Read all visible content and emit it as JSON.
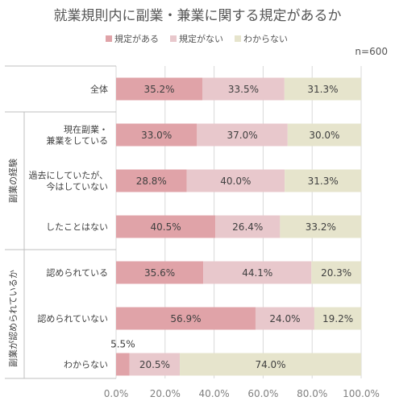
{
  "chart_data": {
    "type": "bar",
    "orientation": "horizontal",
    "stacked": "100%",
    "title": "就業規則内に副業・兼業に関する規定があるか",
    "note": "n=600",
    "legend_position": "top",
    "series": [
      {
        "name": "規定がある",
        "color": "#e0a3a8",
        "values": [
          35.2,
          33.0,
          28.8,
          40.5,
          35.6,
          56.9,
          5.5
        ]
      },
      {
        "name": "規定がない",
        "color": "#e8c8cc",
        "values": [
          33.5,
          37.0,
          40.0,
          26.4,
          44.1,
          24.0,
          20.5
        ]
      },
      {
        "name": "わからない",
        "color": "#e6e4cc",
        "values": [
          31.3,
          30.0,
          31.3,
          33.2,
          20.3,
          19.2,
          74.0
        ]
      }
    ],
    "value_labels": [
      [
        "35.2%",
        "33.5%",
        "31.3%"
      ],
      [
        "33.0%",
        "37.0%",
        "30.0%"
      ],
      [
        "28.8%",
        "40.0%",
        "31.3%"
      ],
      [
        "40.5%",
        "26.4%",
        "33.2%"
      ],
      [
        "35.6%",
        "44.1%",
        "20.3%"
      ],
      [
        "56.9%",
        "24.0%",
        "19.2%"
      ],
      [
        "5.5%",
        "20.5%",
        "74.0%"
      ]
    ],
    "categories": [
      [
        "全体"
      ],
      [
        "現在副業・",
        "兼業をしている"
      ],
      [
        "過去にしていたが、",
        "今はしていない"
      ],
      [
        "したことはない"
      ],
      [
        "認められている"
      ],
      [
        "認められていない"
      ],
      [
        "わからない"
      ]
    ],
    "groups": [
      {
        "label": "副業の経験",
        "from": 1,
        "to": 3
      },
      {
        "label": "副業が認められているか",
        "from": 4,
        "to": 6
      }
    ],
    "xlim": [
      0,
      100
    ],
    "xticks": [
      "0.0%",
      "20.0%",
      "40.0%",
      "60.0%",
      "80.0%",
      "100.0%"
    ],
    "grid": true
  }
}
